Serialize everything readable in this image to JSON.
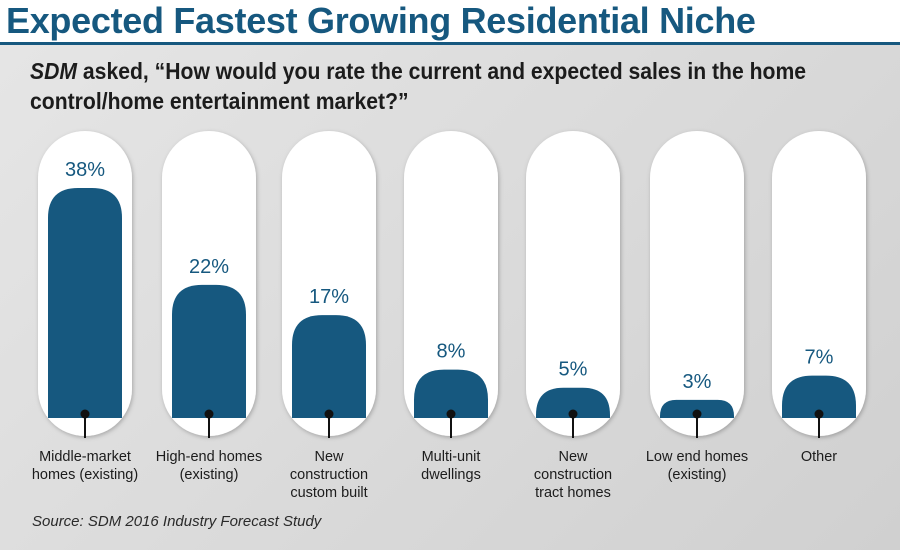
{
  "header": {
    "title": "Expected Fastest Growing Residential Niche"
  },
  "question": {
    "brand": "SDM",
    "line1": " asked, “How would you rate the current and expected sales in the home",
    "line2": "control/home entertainment market?”"
  },
  "source": "Source: SDM 2016 Industry Forecast Study",
  "colors": {
    "bar": "#16587f",
    "title": "#16587f",
    "pill": "#ffffff",
    "background": "#dcdcdc"
  },
  "chart_data": {
    "type": "bar",
    "title": "Expected Fastest Growing Residential Niche",
    "categories": [
      "Middle-market homes (existing)",
      "High-end homes (existing)",
      "New construction custom built",
      "Multi-unit dwellings",
      "New construction tract homes",
      "Low end homes (existing)",
      "Other"
    ],
    "category_labels": [
      "Middle-market\nhomes (existing)",
      "High-end homes\n(existing)",
      "New\nconstruction\ncustom built",
      "Multi-unit\ndwellings",
      "New\nconstruction\ntract homes",
      "Low end homes\n(existing)",
      "Other"
    ],
    "values": [
      38,
      22,
      17,
      8,
      5,
      3,
      7
    ],
    "value_labels": [
      "38%",
      "22%",
      "17%",
      "8%",
      "5%",
      "3%",
      "7%"
    ],
    "unit": "%",
    "ylim": [
      0,
      45
    ],
    "grid": false,
    "legend": "none"
  }
}
